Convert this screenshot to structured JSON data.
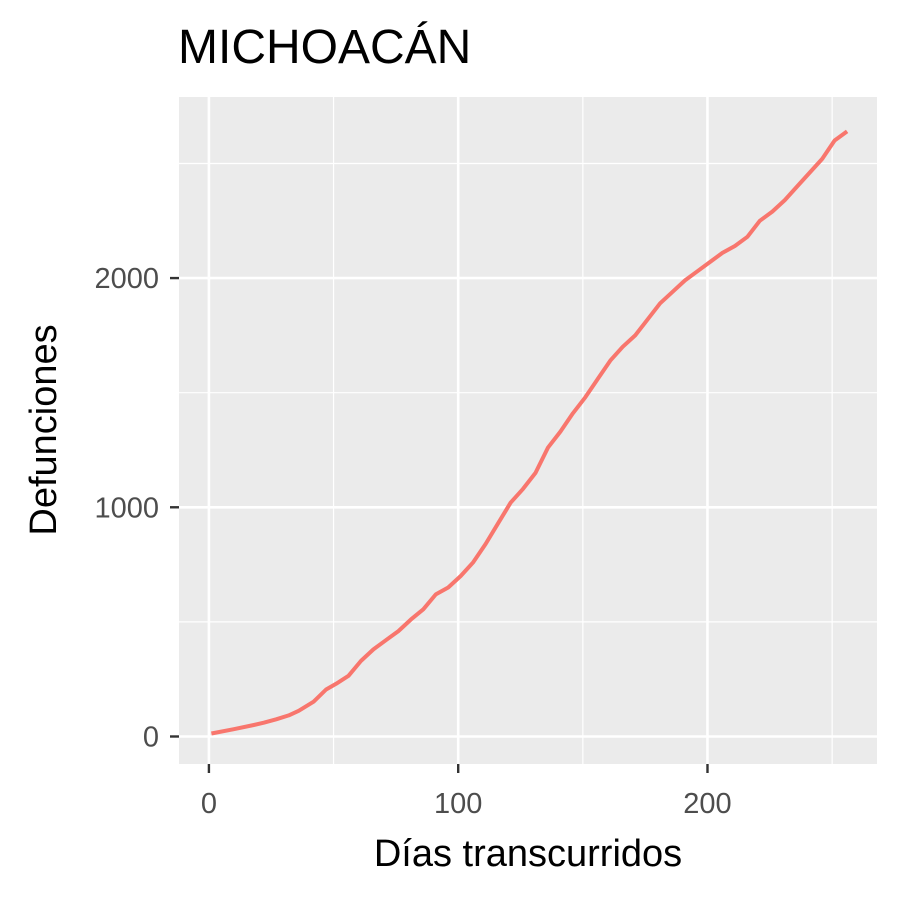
{
  "chart_data": {
    "type": "line",
    "title": "MICHOACÁN",
    "xlabel": "Días transcurridos",
    "ylabel": "Defunciones",
    "xlim": [
      -12,
      268
    ],
    "ylim": [
      -120,
      2790
    ],
    "x_ticks": [
      0,
      100,
      200
    ],
    "x_tick_labels": [
      "0",
      "100",
      "200"
    ],
    "y_ticks": [
      0,
      1000,
      2000
    ],
    "y_tick_labels": [
      "0",
      "1000",
      "2000"
    ],
    "x_minor": [
      50,
      150,
      250
    ],
    "y_minor": [
      500,
      1500,
      2500
    ],
    "grid": true,
    "legend": "none",
    "series": [
      {
        "color": "#F8766D",
        "x": [
          1,
          10,
          18,
          22,
          27,
          32,
          36,
          42,
          47,
          51,
          56,
          61,
          66,
          71,
          76,
          81,
          86,
          91,
          96,
          101,
          106,
          111,
          116,
          121,
          126,
          131,
          136,
          141,
          146,
          151,
          156,
          161,
          166,
          171,
          176,
          181,
          186,
          191,
          196,
          201,
          206,
          211,
          216,
          221,
          226,
          231,
          236,
          241,
          246,
          251,
          256
        ],
        "y": [
          13,
          32,
          50,
          60,
          75,
          92,
          112,
          152,
          205,
          230,
          265,
          330,
          380,
          420,
          460,
          510,
          555,
          620,
          650,
          700,
          760,
          840,
          930,
          1020,
          1080,
          1150,
          1260,
          1330,
          1410,
          1480,
          1560,
          1640,
          1700,
          1750,
          1820,
          1890,
          1940,
          1990,
          2030,
          2070,
          2110,
          2140,
          2180,
          2250,
          2290,
          2340,
          2400,
          2460,
          2520,
          2600,
          2640
        ]
      }
    ]
  }
}
